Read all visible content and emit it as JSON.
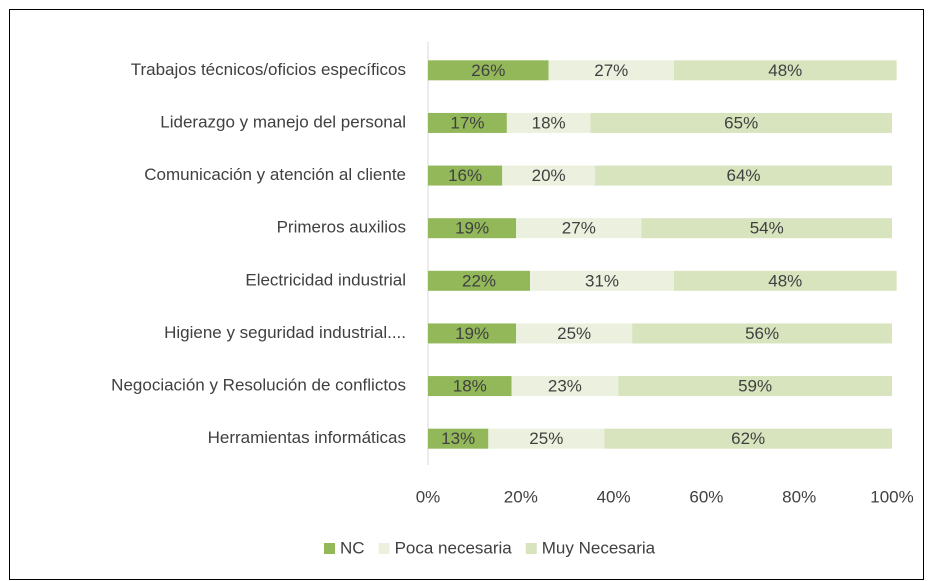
{
  "chart_data": {
    "type": "bar",
    "orientation": "horizontal",
    "stacked": true,
    "categories": [
      "Trabajos técnicos/oficios específicos",
      "Liderazgo y manejo del personal",
      "Comunicación y atención al cliente",
      "Primeros auxilios",
      "Electricidad industrial",
      "Higiene y seguridad industrial....",
      "Negociación y Resolución de conflictos",
      "Herramientas informáticas"
    ],
    "series": [
      {
        "name": "NC",
        "color": "#93b85a",
        "values": [
          26,
          17,
          16,
          19,
          22,
          19,
          18,
          13
        ],
        "value_labels": [
          "26%",
          "17%",
          "16%",
          "19%",
          "22%",
          "19%",
          "18%",
          "13%"
        ]
      },
      {
        "name": "Poca necesaria",
        "color": "#ebf1de",
        "values": [
          27,
          18,
          20,
          27,
          31,
          25,
          23,
          25
        ],
        "value_labels": [
          "27%",
          "18%",
          "20%",
          "27%",
          "31%",
          "25%",
          "23%",
          "25%"
        ]
      },
      {
        "name": "Muy Necesaria",
        "color": "#d7e4bd",
        "values": [
          48,
          65,
          64,
          54,
          48,
          56,
          59,
          62
        ],
        "value_labels": [
          "48%",
          "65%",
          "64%",
          "54%",
          "48%",
          "56%",
          "59%",
          "62%"
        ]
      }
    ],
    "xlim": [
      0,
      100
    ],
    "xticks": [
      {
        "value": 0,
        "label": "0%"
      },
      {
        "value": 20,
        "label": "20%"
      },
      {
        "value": 40,
        "label": "40%"
      },
      {
        "value": 60,
        "label": "60%"
      },
      {
        "value": 80,
        "label": "80%"
      },
      {
        "value": 100,
        "label": "100%"
      }
    ],
    "legend": "bottom"
  }
}
